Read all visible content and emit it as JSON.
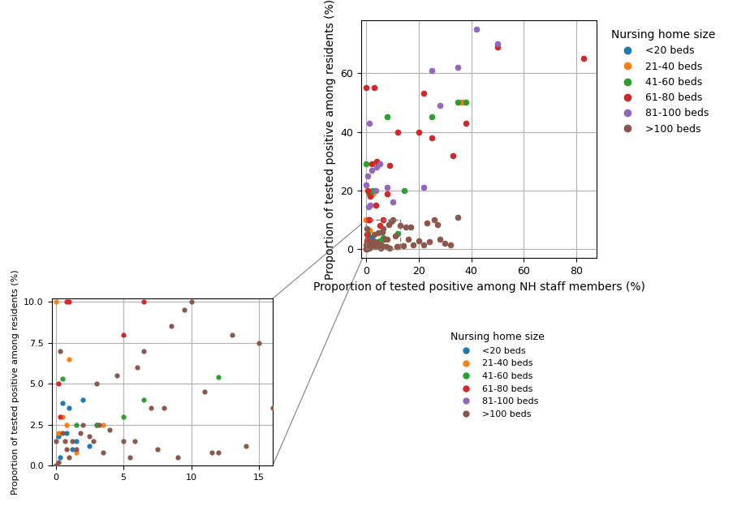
{
  "chart_data": [
    {
      "type": "scatter",
      "xlabel": "Proportion of tested positive among NH staff members (%)",
      "ylabel": "Proportion of tested positive among residents (%)",
      "xlim": [
        -2,
        88
      ],
      "ylim": [
        -3,
        78
      ],
      "xticks": [
        0,
        20,
        40,
        60,
        80
      ],
      "yticks": [
        0,
        20,
        40,
        60
      ],
      "grid": true,
      "legend": "upper left",
      "legend_title": "Nursing home size",
      "zoom_box": {
        "x0": 0,
        "x1": 13,
        "y0": 0,
        "y1": 10
      },
      "series": [
        {
          "name": "<20 beds",
          "x": [
            0.3,
            0.5,
            0.8,
            1.0,
            1.2,
            1.5,
            2.0,
            2.5,
            3.0,
            0.2,
            0.0
          ],
          "y": [
            0.5,
            3.8,
            2.0,
            3.5,
            1.0,
            1.5,
            4.0,
            1.2,
            2.5,
            1.8,
            0.0
          ]
        },
        {
          "name": "21-40 beds",
          "x": [
            0.0,
            0.2,
            0.5,
            0.8,
            1.0,
            1.5,
            2.5,
            3.5,
            36.0,
            37.0
          ],
          "y": [
            10.0,
            2.0,
            3.0,
            2.5,
            6.5,
            0.8,
            19.0,
            2.5,
            50.0,
            50.0
          ]
        },
        {
          "name": "41-60 beds",
          "x": [
            0.0,
            0.5,
            1.0,
            1.5,
            2.5,
            3.0,
            5.0,
            6.5,
            8.0,
            12.0,
            14.5,
            25.0,
            35.0,
            38.0
          ],
          "y": [
            29.0,
            5.3,
            19.0,
            2.5,
            20.0,
            2.5,
            3.0,
            4.0,
            45.0,
            5.4,
            20.0,
            45.0,
            50.0,
            50.0
          ]
        },
        {
          "name": "61-80 beds",
          "x": [
            0.0,
            0.2,
            0.3,
            0.5,
            0.8,
            1.0,
            1.5,
            2.0,
            3.0,
            3.5,
            4.0,
            5.0,
            6.5,
            8.0,
            9.0,
            12.0,
            20.0,
            22.0,
            25.0,
            33.0,
            38.0,
            50.0,
            83.0
          ],
          "y": [
            55.0,
            5.0,
            3.0,
            20.0,
            10.0,
            10.0,
            18.0,
            29.0,
            55.0,
            15.0,
            30.0,
            8.0,
            10.0,
            19.0,
            28.5,
            40.0,
            40.0,
            53.0,
            38.0,
            32.0,
            43.0,
            69.0,
            65.0
          ]
        },
        {
          "name": "81-100 beds",
          "x": [
            0.0,
            0.5,
            0.8,
            1.0,
            1.5,
            2.0,
            3.5,
            4.0,
            5.0,
            8.0,
            10.0,
            22.0,
            25.0,
            28.0,
            35.0,
            42.0,
            50.0
          ],
          "y": [
            22.0,
            25.0,
            14.5,
            43.0,
            15.0,
            27.0,
            20.0,
            28.0,
            29.0,
            21.0,
            16.0,
            21.0,
            61.0,
            49.0,
            62.0,
            75.0,
            70.0
          ]
        },
        {
          "name": ">100 beds",
          "x": [
            0.0,
            0.0,
            0.2,
            0.3,
            0.5,
            0.7,
            0.8,
            1.0,
            1.2,
            1.5,
            1.8,
            2.0,
            2.5,
            2.8,
            3.0,
            3.2,
            3.5,
            4.0,
            4.5,
            5.0,
            5.5,
            5.8,
            6.0,
            6.5,
            7.0,
            7.5,
            8.0,
            8.5,
            9.0,
            9.5,
            10.0,
            11.0,
            11.5,
            12.0,
            13.0,
            14.0,
            15.0,
            16.0,
            17.0,
            18.0,
            20.0,
            22.0,
            23.0,
            24.0,
            26.0,
            27.0,
            28.0,
            30.0,
            32.0,
            35.0
          ],
          "y": [
            0.0,
            1.5,
            0.2,
            7.0,
            2.0,
            1.5,
            1.0,
            0.5,
            1.5,
            1.0,
            2.0,
            2.5,
            1.8,
            1.5,
            5.0,
            2.5,
            0.8,
            2.2,
            5.5,
            1.5,
            0.5,
            1.5,
            6.0,
            7.0,
            3.5,
            1.0,
            3.5,
            8.5,
            0.5,
            9.5,
            10.0,
            4.5,
            0.8,
            0.8,
            8.0,
            1.2,
            7.5,
            3.5,
            7.5,
            1.5,
            3.0,
            1.5,
            9.0,
            2.5,
            10.0,
            8.5,
            3.5,
            2.0,
            1.5,
            11.0
          ]
        }
      ]
    },
    {
      "type": "scatter",
      "ylabel": "Proportion of tested positive among residents (%)",
      "xlim": [
        -0.3,
        16
      ],
      "ylim": [
        0.0,
        10.2
      ],
      "xticks": [
        0,
        5,
        10,
        15
      ],
      "yticks": [
        {
          "value": 0,
          "label": "0.0"
        },
        2.5,
        {
          "value": 5,
          "label": "5.0"
        },
        7.5,
        {
          "value": 10,
          "label": "10.0"
        }
      ],
      "grid": true,
      "legend": "upper left",
      "legend_title": "Nursing home size",
      "series": [
        {
          "name": "<20 beds",
          "x": [
            0.3,
            0.5,
            0.8,
            1.0,
            1.2,
            1.5,
            2.0,
            2.5,
            3.0,
            0.2,
            0.0
          ],
          "y": [
            0.5,
            3.8,
            2.0,
            3.5,
            1.0,
            1.5,
            4.0,
            1.2,
            2.5,
            1.8,
            0.0
          ]
        },
        {
          "name": "21-40 beds",
          "x": [
            0.0,
            0.2,
            0.5,
            0.8,
            1.0,
            1.5,
            3.5
          ],
          "y": [
            10.0,
            2.0,
            3.0,
            2.5,
            6.5,
            0.8,
            2.5
          ]
        },
        {
          "name": "41-60 beds",
          "x": [
            0.5,
            1.5,
            3.0,
            5.0,
            6.5,
            12.0
          ],
          "y": [
            5.3,
            2.5,
            2.5,
            3.0,
            4.0,
            5.4
          ]
        },
        {
          "name": "61-80 beds",
          "x": [
            0.2,
            0.3,
            0.8,
            1.0,
            5.0,
            6.5
          ],
          "y": [
            5.0,
            3.0,
            10.0,
            10.0,
            8.0,
            10.0
          ]
        },
        {
          "name": "81-100 beds",
          "x": [],
          "y": []
        },
        {
          "name": ">100 beds",
          "x": [
            0.0,
            0.0,
            0.2,
            0.3,
            0.5,
            0.7,
            0.8,
            1.0,
            1.2,
            1.5,
            1.8,
            2.0,
            2.5,
            2.8,
            3.0,
            3.2,
            3.5,
            4.0,
            4.5,
            5.0,
            5.5,
            5.8,
            6.0,
            6.5,
            7.0,
            7.5,
            8.0,
            8.5,
            9.0,
            9.5,
            10.0,
            11.0,
            11.5,
            12.0,
            13.0,
            14.0,
            15.0,
            16.0
          ],
          "y": [
            0.0,
            1.5,
            0.2,
            7.0,
            2.0,
            1.5,
            1.0,
            0.5,
            1.5,
            1.0,
            2.0,
            2.5,
            1.8,
            1.5,
            5.0,
            2.5,
            0.8,
            2.2,
            5.5,
            1.5,
            0.5,
            1.5,
            6.0,
            7.0,
            3.5,
            1.0,
            3.5,
            8.5,
            0.5,
            9.5,
            10.0,
            4.5,
            0.8,
            0.8,
            8.0,
            1.2,
            7.5,
            3.5
          ]
        }
      ]
    }
  ]
}
